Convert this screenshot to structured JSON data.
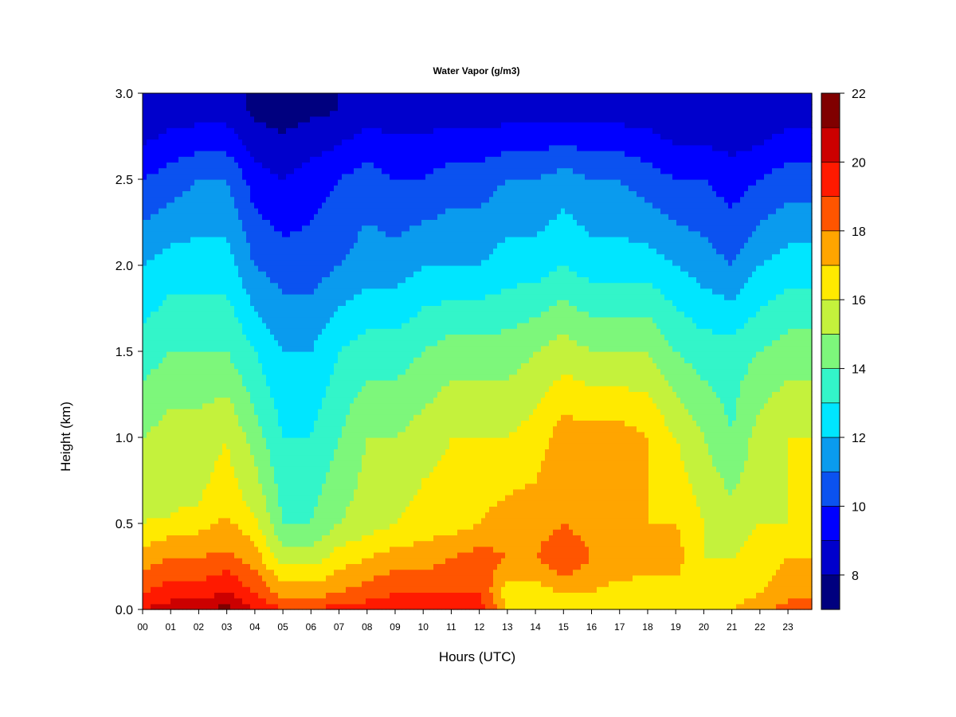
{
  "chart_data": {
    "type": "heatmap",
    "title": "Water Vapor (g/m3)",
    "xlabel": "Hours (UTC)",
    "ylabel": "Height (km)",
    "x_ticks": [
      "00",
      "01",
      "02",
      "03",
      "04",
      "05",
      "06",
      "07",
      "08",
      "09",
      "10",
      "11",
      "12",
      "13",
      "14",
      "15",
      "16",
      "17",
      "18",
      "19",
      "20",
      "21",
      "22",
      "23"
    ],
    "xlim": [
      0,
      23.85
    ],
    "y_ticks": [
      "0.0",
      "0.5",
      "1.0",
      "1.5",
      "2.0",
      "2.5",
      "3.0"
    ],
    "ylim": [
      0,
      3.0
    ],
    "colorbar": {
      "min": 7,
      "max": 22,
      "step": 1,
      "tick_labels": [
        "8",
        "10",
        "12",
        "14",
        "16",
        "18",
        "20",
        "22"
      ],
      "colors": [
        "#00007f",
        "#0000cc",
        "#0000ff",
        "#0b52f0",
        "#0a9bee",
        "#00e6ff",
        "#33f5c9",
        "#7df77b",
        "#c4f23c",
        "#ffea00",
        "#ffa500",
        "#ff5500",
        "#ff1a00",
        "#cc0000",
        "#800000"
      ]
    },
    "profiles": [
      {
        "hour": 0,
        "levels": [
          [
            0,
            20
          ],
          [
            0.1,
            19
          ],
          [
            0.3,
            17.5
          ],
          [
            0.5,
            16
          ],
          [
            1.0,
            15
          ],
          [
            1.5,
            13.5
          ],
          [
            2.0,
            12
          ],
          [
            2.5,
            10
          ],
          [
            2.9,
            8
          ]
        ]
      },
      {
        "hour": 1,
        "levels": [
          [
            0,
            20.5
          ],
          [
            0.1,
            19.5
          ],
          [
            0.3,
            18
          ],
          [
            0.55,
            16
          ],
          [
            1.0,
            15.5
          ],
          [
            1.5,
            14
          ],
          [
            2.0,
            12.5
          ],
          [
            2.5,
            10.5
          ],
          [
            2.9,
            8.5
          ]
        ]
      },
      {
        "hour": 2,
        "levels": [
          [
            0,
            20.5
          ],
          [
            0.1,
            19.5
          ],
          [
            0.3,
            18
          ],
          [
            0.6,
            16
          ],
          [
            1.0,
            15.5
          ],
          [
            1.5,
            14
          ],
          [
            2.0,
            12.5
          ],
          [
            2.5,
            11
          ],
          [
            2.9,
            8.5
          ]
        ]
      },
      {
        "hour": 3,
        "levels": [
          [
            0,
            21.5
          ],
          [
            0.1,
            20
          ],
          [
            0.35,
            18
          ],
          [
            0.65,
            16.5
          ],
          [
            1.0,
            16
          ],
          [
            1.5,
            14
          ],
          [
            2.0,
            12.5
          ],
          [
            2.5,
            11
          ],
          [
            2.9,
            8.5
          ]
        ]
      },
      {
        "hour": 4,
        "levels": [
          [
            0,
            20
          ],
          [
            0.1,
            19
          ],
          [
            0.3,
            17.5
          ],
          [
            0.55,
            16
          ],
          [
            1.0,
            14.5
          ],
          [
            1.5,
            13
          ],
          [
            2.0,
            11
          ],
          [
            2.5,
            9.5
          ],
          [
            2.9,
            7.8
          ]
        ]
      },
      {
        "hour": 5,
        "levels": [
          [
            0,
            19
          ],
          [
            0.1,
            17.5
          ],
          [
            0.3,
            15.5
          ],
          [
            0.5,
            14
          ],
          [
            1.0,
            13
          ],
          [
            1.5,
            12
          ],
          [
            2.0,
            10.5
          ],
          [
            2.5,
            9
          ],
          [
            2.9,
            7.5
          ]
        ]
      },
      {
        "hour": 6,
        "levels": [
          [
            0,
            19
          ],
          [
            0.1,
            17.5
          ],
          [
            0.3,
            15.5
          ],
          [
            0.5,
            14
          ],
          [
            1.0,
            13
          ],
          [
            1.5,
            12
          ],
          [
            2.0,
            10.5
          ],
          [
            2.5,
            9.5
          ],
          [
            2.9,
            7.8
          ]
        ]
      },
      {
        "hour": 7,
        "levels": [
          [
            0,
            19.5
          ],
          [
            0.1,
            18
          ],
          [
            0.3,
            16.5
          ],
          [
            0.5,
            15
          ],
          [
            1.0,
            14
          ],
          [
            1.5,
            13
          ],
          [
            2.0,
            11
          ],
          [
            2.5,
            10
          ],
          [
            2.9,
            8
          ]
        ]
      },
      {
        "hour": 8,
        "levels": [
          [
            0,
            19.5
          ],
          [
            0.1,
            18.5
          ],
          [
            0.3,
            17
          ],
          [
            0.5,
            15.5
          ],
          [
            1.0,
            15
          ],
          [
            1.5,
            13.5
          ],
          [
            2.0,
            11.5
          ],
          [
            2.5,
            10.5
          ],
          [
            2.9,
            8.5
          ]
        ]
      },
      {
        "hour": 9,
        "levels": [
          [
            0,
            19.5
          ],
          [
            0.1,
            19
          ],
          [
            0.3,
            17.5
          ],
          [
            0.5,
            16
          ],
          [
            1.0,
            15
          ],
          [
            1.5,
            13.5
          ],
          [
            2.0,
            11.5
          ],
          [
            2.5,
            10
          ],
          [
            2.9,
            8.5
          ]
        ]
      },
      {
        "hour": 10,
        "levels": [
          [
            0,
            19.5
          ],
          [
            0.1,
            19
          ],
          [
            0.3,
            17.5
          ],
          [
            0.5,
            16.5
          ],
          [
            1.0,
            15.5
          ],
          [
            1.5,
            14
          ],
          [
            2.0,
            12
          ],
          [
            2.5,
            10
          ],
          [
            2.9,
            8.5
          ]
        ]
      },
      {
        "hour": 11,
        "levels": [
          [
            0,
            19.5
          ],
          [
            0.1,
            19
          ],
          [
            0.3,
            18
          ],
          [
            0.5,
            16.5
          ],
          [
            1.0,
            16
          ],
          [
            1.5,
            14.5
          ],
          [
            2.0,
            12
          ],
          [
            2.5,
            10.5
          ],
          [
            2.9,
            8.5
          ]
        ]
      },
      {
        "hour": 12,
        "levels": [
          [
            0,
            19.5
          ],
          [
            0.1,
            19
          ],
          [
            0.3,
            18.5
          ],
          [
            0.5,
            17
          ],
          [
            1.0,
            16
          ],
          [
            1.5,
            14.5
          ],
          [
            2.0,
            12
          ],
          [
            2.5,
            10.5
          ],
          [
            2.9,
            8.5
          ]
        ]
      },
      {
        "hour": 13,
        "levels": [
          [
            0,
            17
          ],
          [
            0.1,
            16.5
          ],
          [
            0.3,
            18
          ],
          [
            0.5,
            17.5
          ],
          [
            1.0,
            16
          ],
          [
            1.5,
            14.5
          ],
          [
            2.0,
            12.5
          ],
          [
            2.5,
            11
          ],
          [
            2.9,
            8.5
          ]
        ]
      },
      {
        "hour": 14,
        "levels": [
          [
            0,
            16.5
          ],
          [
            0.1,
            16.5
          ],
          [
            0.3,
            18
          ],
          [
            0.5,
            17.5
          ],
          [
            1.0,
            16.5
          ],
          [
            1.5,
            15
          ],
          [
            2.0,
            12.5
          ],
          [
            2.5,
            11
          ],
          [
            2.9,
            8.5
          ]
        ]
      },
      {
        "hour": 15,
        "levels": [
          [
            0,
            16.5
          ],
          [
            0.1,
            17
          ],
          [
            0.3,
            19
          ],
          [
            0.5,
            18
          ],
          [
            1.0,
            17.5
          ],
          [
            1.5,
            15.5
          ],
          [
            2.0,
            13
          ],
          [
            2.5,
            11.5
          ],
          [
            2.9,
            8.5
          ]
        ]
      },
      {
        "hour": 16,
        "levels": [
          [
            0,
            16.5
          ],
          [
            0.1,
            17
          ],
          [
            0.3,
            18
          ],
          [
            0.5,
            17.5
          ],
          [
            1.0,
            17.5
          ],
          [
            1.5,
            15
          ],
          [
            2.0,
            12.5
          ],
          [
            2.5,
            11
          ],
          [
            2.9,
            8.5
          ]
        ]
      },
      {
        "hour": 17,
        "levels": [
          [
            0,
            16
          ],
          [
            0.1,
            16.5
          ],
          [
            0.3,
            18
          ],
          [
            0.5,
            17.5
          ],
          [
            1.0,
            17.5
          ],
          [
            1.5,
            15
          ],
          [
            2.0,
            12.5
          ],
          [
            2.5,
            11
          ],
          [
            2.9,
            8.5
          ]
        ]
      },
      {
        "hour": 18,
        "levels": [
          [
            0,
            16
          ],
          [
            0.1,
            16
          ],
          [
            0.3,
            18
          ],
          [
            0.5,
            17
          ],
          [
            1.0,
            17
          ],
          [
            1.5,
            15
          ],
          [
            2.0,
            12.5
          ],
          [
            2.5,
            10.5
          ],
          [
            2.9,
            8.5
          ]
        ]
      },
      {
        "hour": 19,
        "levels": [
          [
            0,
            16.5
          ],
          [
            0.1,
            16.5
          ],
          [
            0.3,
            17.5
          ],
          [
            0.5,
            17
          ],
          [
            1.0,
            16
          ],
          [
            1.5,
            14
          ],
          [
            2.0,
            12
          ],
          [
            2.5,
            10
          ],
          [
            2.9,
            8
          ]
        ]
      },
      {
        "hour": 20,
        "levels": [
          [
            0,
            16.5
          ],
          [
            0.1,
            16.5
          ],
          [
            0.3,
            16
          ],
          [
            0.5,
            16
          ],
          [
            1.0,
            15
          ],
          [
            1.5,
            13.5
          ],
          [
            2.0,
            11.5
          ],
          [
            2.5,
            10
          ],
          [
            2.9,
            8
          ]
        ]
      },
      {
        "hour": 21,
        "levels": [
          [
            0,
            17
          ],
          [
            0.1,
            16.5
          ],
          [
            0.3,
            16
          ],
          [
            0.5,
            15.5
          ],
          [
            1.0,
            14
          ],
          [
            1.5,
            13.5
          ],
          [
            2.0,
            11
          ],
          [
            2.5,
            9.5
          ],
          [
            2.9,
            8
          ]
        ]
      },
      {
        "hour": 22,
        "levels": [
          [
            0,
            17.5
          ],
          [
            0.1,
            17
          ],
          [
            0.3,
            16.5
          ],
          [
            0.5,
            16
          ],
          [
            1.0,
            15.5
          ],
          [
            1.5,
            14
          ],
          [
            2.0,
            12
          ],
          [
            2.5,
            10
          ],
          [
            2.9,
            8
          ]
        ]
      },
      {
        "hour": 23,
        "levels": [
          [
            0,
            18.5
          ],
          [
            0.1,
            17.5
          ],
          [
            0.3,
            17
          ],
          [
            0.5,
            16
          ],
          [
            1.0,
            16
          ],
          [
            1.5,
            14.5
          ],
          [
            2.0,
            12.5
          ],
          [
            2.5,
            10.5
          ],
          [
            2.9,
            8.5
          ]
        ]
      },
      {
        "hour": 23.85,
        "levels": [
          [
            0,
            18.5
          ],
          [
            0.1,
            17.5
          ],
          [
            0.3,
            17
          ],
          [
            0.5,
            16
          ],
          [
            1.0,
            16
          ],
          [
            1.5,
            14.5
          ],
          [
            2.0,
            12.5
          ],
          [
            2.5,
            10.5
          ],
          [
            2.9,
            8.5
          ]
        ]
      }
    ]
  }
}
